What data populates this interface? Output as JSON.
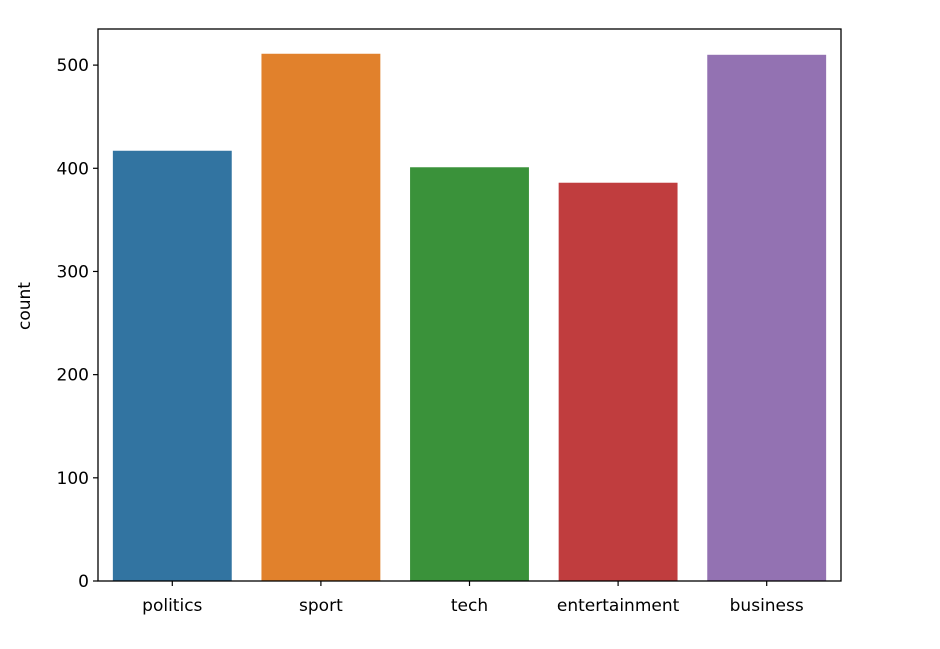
{
  "chart_data": {
    "type": "bar",
    "title": "",
    "xlabel": "",
    "ylabel": "count",
    "categories": [
      "politics",
      "sport",
      "tech",
      "entertainment",
      "business"
    ],
    "values": [
      417,
      511,
      401,
      386,
      510
    ],
    "colors": [
      "#3274a1",
      "#e1812c",
      "#3a923a",
      "#c03d3e",
      "#9372b2"
    ],
    "ylim": [
      0,
      535
    ],
    "yticks": [
      0,
      100,
      200,
      300,
      400,
      500
    ],
    "grid": false,
    "legend": "none"
  }
}
